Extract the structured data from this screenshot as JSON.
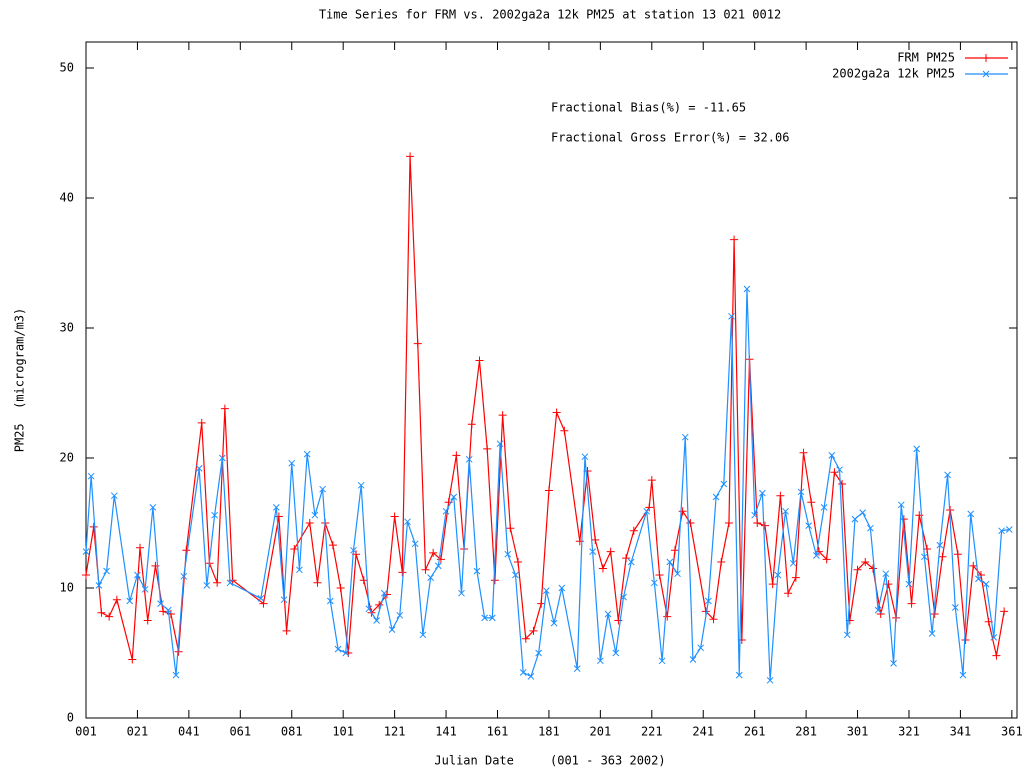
{
  "chart_data": {
    "type": "line",
    "title": "Time Series for FRM vs. 2002ga2a 12k PM25 at station 13 021 0012",
    "x_label": "Julian Date     (001 - 363 2002)",
    "y_label": "PM25  (microgram/m3)",
    "annotations": [
      "Fractional Bias(%) = -11.65",
      "Fractional Gross Error(%) = 32.06"
    ],
    "xlim": [
      1,
      363
    ],
    "ylim": [
      0,
      52
    ],
    "xticks": [
      {
        "value": 1,
        "label": "001"
      },
      {
        "value": 21,
        "label": "021"
      },
      {
        "value": 41,
        "label": "041"
      },
      {
        "value": 61,
        "label": "061"
      },
      {
        "value": 81,
        "label": "081"
      },
      {
        "value": 101,
        "label": "101"
      },
      {
        "value": 121,
        "label": "121"
      },
      {
        "value": 141,
        "label": "141"
      },
      {
        "value": 161,
        "label": "161"
      },
      {
        "value": 181,
        "label": "181"
      },
      {
        "value": 201,
        "label": "201"
      },
      {
        "value": 221,
        "label": "221"
      },
      {
        "value": 241,
        "label": "241"
      },
      {
        "value": 261,
        "label": "261"
      },
      {
        "value": 281,
        "label": "281"
      },
      {
        "value": 301,
        "label": "301"
      },
      {
        "value": 321,
        "label": "321"
      },
      {
        "value": 341,
        "label": "341"
      },
      {
        "value": 361,
        "label": "361"
      }
    ],
    "yticks": [
      0,
      10,
      20,
      30,
      40,
      50
    ],
    "legend": "upper right",
    "series": [
      {
        "name": "FRM PM25",
        "color": "#ff0000",
        "marker": "+",
        "x": [
          1,
          4,
          7,
          10,
          13,
          19,
          22,
          25,
          28,
          31,
          34,
          37,
          40,
          46,
          49,
          52,
          55,
          58,
          70,
          76,
          79,
          82,
          88,
          91,
          94,
          97,
          100,
          103,
          106,
          109,
          112,
          115,
          118,
          121,
          124,
          127,
          130,
          133,
          136,
          139,
          142,
          145,
          148,
          151,
          154,
          157,
          160,
          163,
          166,
          169,
          172,
          175,
          178,
          181,
          184,
          187,
          193,
          196,
          199,
          202,
          205,
          208,
          211,
          214,
          220,
          221,
          224,
          227,
          230,
          233,
          236,
          242,
          245,
          248,
          251,
          253,
          256,
          259,
          262,
          265,
          268,
          271,
          274,
          277,
          280,
          283,
          286,
          289,
          292,
          295,
          298,
          301,
          304,
          307,
          310,
          313,
          316,
          319,
          322,
          325,
          328,
          331,
          334,
          337,
          340,
          343,
          346,
          349,
          352,
          355,
          358
        ],
        "values": [
          11.0,
          14.7,
          8.1,
          7.8,
          9.1,
          4.5,
          13.1,
          7.5,
          11.7,
          8.2,
          8.0,
          5.1,
          12.9,
          22.7,
          11.9,
          10.4,
          23.8,
          10.6,
          8.8,
          15.5,
          6.7,
          13.0,
          15.0,
          10.4,
          15.0,
          13.3,
          10.0,
          5.0,
          12.6,
          10.6,
          8.1,
          8.7,
          9.5,
          15.5,
          11.2,
          43.2,
          28.8,
          11.4,
          12.7,
          12.2,
          16.6,
          20.2,
          13.0,
          22.6,
          27.5,
          20.7,
          10.6,
          23.3,
          14.6,
          12.0,
          6.1,
          6.7,
          8.8,
          17.5,
          23.5,
          22.1,
          13.6,
          19.0,
          13.7,
          11.5,
          12.8,
          7.5,
          12.3,
          14.4,
          16.2,
          18.3,
          11.0,
          7.8,
          12.9,
          15.9,
          15.0,
          8.2,
          7.6,
          12.0,
          15.0,
          36.8,
          6.0,
          27.6,
          15.0,
          14.8,
          10.3,
          17.1,
          9.6,
          10.8,
          20.4,
          16.6,
          12.8,
          12.2,
          18.9,
          18.0,
          7.5,
          11.4,
          12.0,
          11.5,
          8.0,
          10.3,
          7.7,
          15.3,
          8.8,
          15.6,
          13.0,
          8.0,
          12.4,
          16.0,
          12.6,
          6.0,
          11.7,
          11.0,
          7.4,
          4.8,
          8.2
        ]
      },
      {
        "name": "2002ga2a 12k PM25",
        "color": "#1e90ff",
        "marker": "x",
        "x": [
          1,
          3,
          6,
          9,
          12,
          18,
          21,
          24,
          27,
          30,
          33,
          36,
          39,
          45,
          48,
          51,
          54,
          57,
          69,
          75,
          78,
          81,
          84,
          87,
          90,
          93,
          96,
          99,
          102,
          105,
          108,
          111,
          114,
          117,
          120,
          123,
          126,
          129,
          132,
          135,
          138,
          141,
          144,
          147,
          150,
          153,
          156,
          159,
          162,
          165,
          168,
          171,
          174,
          177,
          180,
          183,
          186,
          192,
          195,
          198,
          201,
          204,
          207,
          210,
          213,
          219,
          222,
          225,
          228,
          231,
          234,
          237,
          240,
          243,
          246,
          249,
          252,
          255,
          258,
          261,
          264,
          267,
          270,
          273,
          276,
          279,
          282,
          285,
          288,
          291,
          294,
          297,
          300,
          303,
          306,
          309,
          312,
          315,
          318,
          321,
          324,
          327,
          330,
          333,
          336,
          339,
          342,
          345,
          348,
          351,
          354,
          357,
          360
        ],
        "values": [
          12.8,
          18.6,
          10.2,
          11.3,
          17.1,
          9.0,
          11.0,
          9.9,
          16.2,
          8.8,
          8.3,
          3.3,
          10.9,
          19.2,
          10.2,
          15.6,
          20.0,
          10.4,
          9.2,
          16.2,
          9.1,
          19.6,
          11.4,
          20.3,
          15.6,
          17.6,
          9.0,
          5.3,
          5.0,
          12.9,
          17.9,
          8.4,
          7.5,
          9.6,
          6.8,
          7.9,
          15.1,
          13.4,
          6.4,
          10.8,
          11.7,
          15.9,
          17.0,
          9.6,
          19.9,
          11.3,
          7.7,
          7.7,
          21.1,
          12.6,
          11.0,
          3.5,
          3.2,
          5.0,
          9.8,
          7.3,
          10.0,
          3.8,
          20.1,
          12.8,
          4.4,
          8.0,
          5.0,
          9.3,
          12.0,
          15.9,
          10.4,
          4.4,
          12.0,
          11.1,
          21.6,
          4.5,
          5.4,
          9.0,
          17.0,
          18.0,
          30.9,
          3.3,
          33.0,
          15.6,
          17.3,
          2.9,
          11.0,
          15.9,
          11.9,
          17.4,
          14.8,
          12.5,
          16.2,
          20.2,
          19.1,
          6.4,
          15.3,
          15.8,
          14.6,
          8.3,
          11.1,
          4.2,
          16.4,
          10.3,
          20.7,
          12.4,
          6.5,
          13.3,
          18.7,
          8.5,
          3.3,
          15.7,
          10.7,
          10.3,
          6.2,
          14.4,
          14.5
        ]
      }
    ]
  }
}
